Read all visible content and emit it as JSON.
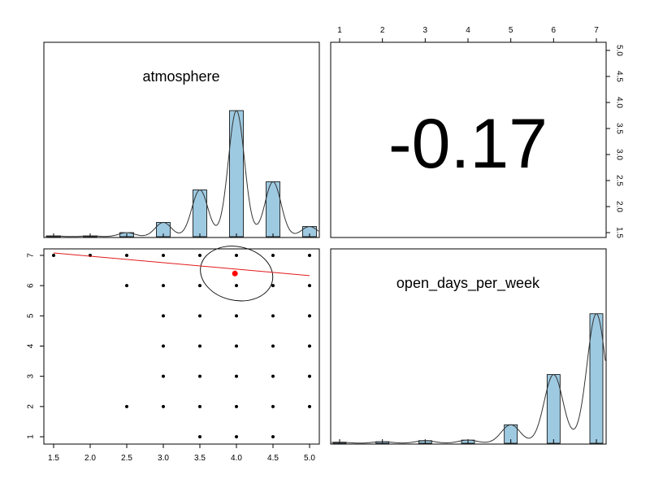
{
  "chart_data": {
    "type": "scatter",
    "layout": "pairs-panel",
    "variables": [
      "atmosphere",
      "open_days_per_week"
    ],
    "correlation": "-0.17",
    "hist_color": "#9ecae1",
    "atmosphere": {
      "hist": [
        {
          "x": 1.5,
          "v": 0.02
        },
        {
          "x": 2.0,
          "v": 0.02
        },
        {
          "x": 2.5,
          "v": 0.1
        },
        {
          "x": 3.0,
          "v": 0.35
        },
        {
          "x": 3.5,
          "v": 1.15
        },
        {
          "x": 4.0,
          "v": 3.1
        },
        {
          "x": 4.5,
          "v": 1.35
        },
        {
          "x": 5.0,
          "v": 0.25
        }
      ],
      "ticks": [
        "1.5",
        "2.0",
        "2.5",
        "3.0",
        "3.5",
        "4.0",
        "4.5",
        "5.0"
      ]
    },
    "open_days_per_week": {
      "hist": [
        {
          "x": 1,
          "v": 0.02
        },
        {
          "x": 2,
          "v": 0.03
        },
        {
          "x": 3,
          "v": 0.05
        },
        {
          "x": 4,
          "v": 0.06
        },
        {
          "x": 5,
          "v": 0.35
        },
        {
          "x": 6,
          "v": 1.3
        },
        {
          "x": 7,
          "v": 2.45
        }
      ],
      "ticks": [
        "1",
        "2",
        "3",
        "4",
        "5",
        "6",
        "7"
      ]
    },
    "scatter_points": [
      [
        1.5,
        7
      ],
      [
        2.0,
        7
      ],
      [
        2.5,
        7
      ],
      [
        3.0,
        7
      ],
      [
        3.5,
        7
      ],
      [
        4.0,
        7
      ],
      [
        4.5,
        7
      ],
      [
        5.0,
        7
      ],
      [
        2.5,
        6
      ],
      [
        3.0,
        6
      ],
      [
        3.5,
        6
      ],
      [
        4.0,
        6
      ],
      [
        4.5,
        6
      ],
      [
        5.0,
        6
      ],
      [
        3.0,
        5
      ],
      [
        3.5,
        5
      ],
      [
        4.0,
        5
      ],
      [
        4.5,
        5
      ],
      [
        5.0,
        5
      ],
      [
        3.0,
        4
      ],
      [
        3.5,
        4
      ],
      [
        4.0,
        4
      ],
      [
        4.5,
        4
      ],
      [
        5.0,
        4
      ],
      [
        3.0,
        3
      ],
      [
        3.5,
        3
      ],
      [
        4.0,
        3
      ],
      [
        4.5,
        3
      ],
      [
        5.0,
        3
      ],
      [
        2.5,
        2
      ],
      [
        3.0,
        2
      ],
      [
        3.5,
        2
      ],
      [
        4.0,
        2
      ],
      [
        4.5,
        2
      ],
      [
        5.0,
        2
      ],
      [
        3.5,
        1
      ],
      [
        4.0,
        1
      ],
      [
        4.5,
        1
      ]
    ],
    "mean_point": [
      3.98,
      6.4
    ],
    "fit_line": {
      "x": [
        1.5,
        5.0
      ],
      "y": [
        7.08,
        6.33
      ]
    },
    "scatter_x_ticks": [
      "1.5",
      "2.0",
      "2.5",
      "3.0",
      "3.5",
      "4.0",
      "4.5",
      "5.0"
    ],
    "scatter_y_ticks": [
      "1",
      "2",
      "3",
      "4",
      "5",
      "6",
      "7"
    ],
    "top_x_ticks": [
      "1",
      "2",
      "3",
      "4",
      "5",
      "6",
      "7"
    ],
    "right_y_ticks": [
      "1.5",
      "2.0",
      "2.5",
      "3.0",
      "3.5",
      "4.0",
      "4.5",
      "5.0"
    ]
  }
}
